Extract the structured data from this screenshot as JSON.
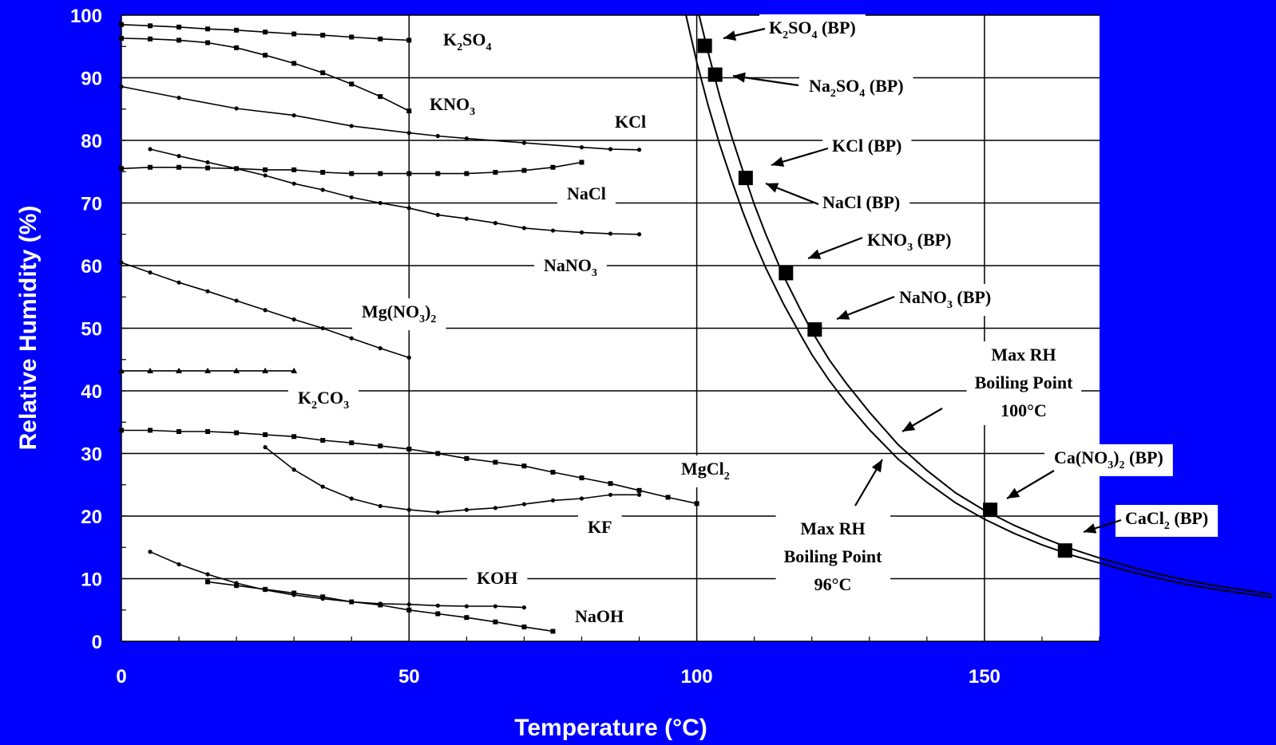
{
  "chart_data": {
    "type": "line",
    "title": "",
    "xlabel": "Temperature (°C)",
    "ylabel": "Relative Humidity (%)",
    "xlim": [
      0,
      170
    ],
    "ylim": [
      0,
      100
    ],
    "x_ticks": [
      0,
      50,
      100,
      150
    ],
    "y_ticks": [
      0,
      10,
      20,
      30,
      40,
      50,
      60,
      70,
      80,
      90,
      100
    ],
    "grid": true,
    "colors": {
      "background": "#0000ff",
      "plot": "#ffffff",
      "ink": "#000000",
      "text": "#ffffff"
    },
    "series": [
      {
        "name": "K2SO4",
        "label_parts": [
          [
            "K"
          ],
          [
            "2",
            "sub"
          ],
          [
            "SO"
          ],
          [
            "4",
            "sub"
          ]
        ],
        "marker": "square",
        "x": [
          0,
          5,
          10,
          15,
          20,
          25,
          30,
          35,
          40,
          45,
          50
        ],
        "y": [
          98.5,
          98.3,
          98.1,
          97.8,
          97.6,
          97.3,
          97.0,
          96.8,
          96.5,
          96.2,
          96.0
        ]
      },
      {
        "name": "KNO3",
        "label_parts": [
          [
            "KNO"
          ],
          [
            "3",
            "sub"
          ]
        ],
        "marker": "square",
        "x": [
          0,
          5,
          10,
          15,
          20,
          25,
          30,
          35,
          40,
          45,
          50
        ],
        "y": [
          96.3,
          96.2,
          96.0,
          95.6,
          94.8,
          93.6,
          92.3,
          90.8,
          89.0,
          87.0,
          84.7
        ]
      },
      {
        "name": "KCl",
        "label_parts": [
          [
            "KCl"
          ]
        ],
        "marker": "dot",
        "x": [
          0,
          10,
          20,
          30,
          40,
          50,
          55,
          60,
          70,
          80,
          85,
          90
        ],
        "y": [
          88.6,
          86.8,
          85.1,
          84.0,
          82.3,
          81.2,
          80.7,
          80.3,
          79.6,
          78.9,
          78.6,
          78.5
        ]
      },
      {
        "name": "NaCl",
        "label_parts": [
          [
            "NaCl"
          ]
        ],
        "marker": "square",
        "x": [
          0,
          5,
          10,
          15,
          20,
          25,
          30,
          35,
          40,
          45,
          50,
          55,
          60,
          65,
          70,
          75,
          80
        ],
        "y": [
          75.5,
          75.7,
          75.7,
          75.6,
          75.5,
          75.3,
          75.3,
          74.9,
          74.7,
          74.7,
          74.7,
          74.7,
          74.7,
          74.9,
          75.2,
          75.7,
          76.5
        ]
      },
      {
        "name": "NaNO3",
        "label_parts": [
          [
            "NaNO"
          ],
          [
            "3",
            "sub"
          ]
        ],
        "marker": "dot",
        "x": [
          5,
          10,
          15,
          20,
          25,
          30,
          35,
          40,
          45,
          50,
          55,
          60,
          65,
          70,
          75,
          80,
          85,
          90
        ],
        "y": [
          78.6,
          77.5,
          76.5,
          75.5,
          74.4,
          73.1,
          72.1,
          70.9,
          70.0,
          69.2,
          68.1,
          67.5,
          66.8,
          66.0,
          65.6,
          65.3,
          65.1,
          65.0
        ]
      },
      {
        "name": "Mg(NO3)2",
        "label_parts": [
          [
            "Mg(NO"
          ],
          [
            "3",
            "sub"
          ],
          [
            ")"
          ],
          [
            "2",
            "sub"
          ]
        ],
        "marker": "dot",
        "x": [
          0,
          5,
          10,
          15,
          20,
          25,
          30,
          35,
          40,
          45,
          50
        ],
        "y": [
          60.5,
          58.9,
          57.3,
          55.9,
          54.4,
          52.9,
          51.4,
          50.0,
          48.4,
          46.8,
          45.3
        ]
      },
      {
        "name": "K2CO3",
        "label_parts": [
          [
            "K"
          ],
          [
            "2",
            "sub"
          ],
          [
            "CO"
          ],
          [
            "3",
            "sub"
          ]
        ],
        "marker": "triangle",
        "x": [
          0,
          5,
          10,
          15,
          20,
          25,
          30
        ],
        "y": [
          43.2,
          43.2,
          43.2,
          43.2,
          43.2,
          43.2,
          43.2
        ]
      },
      {
        "name": "MgCl2",
        "label_parts": [
          [
            "MgCl"
          ],
          [
            "2",
            "sub"
          ]
        ],
        "marker": "square",
        "x": [
          0,
          5,
          10,
          15,
          20,
          25,
          30,
          35,
          40,
          45,
          50,
          55,
          60,
          65,
          70,
          75,
          80,
          85,
          90,
          95,
          100
        ],
        "y": [
          33.7,
          33.7,
          33.5,
          33.5,
          33.3,
          33.0,
          32.7,
          32.1,
          31.7,
          31.2,
          30.7,
          30.0,
          29.2,
          28.6,
          28.0,
          27.0,
          26.1,
          25.2,
          24.1,
          23.0,
          22.0
        ]
      },
      {
        "name": "KF",
        "label_parts": [
          [
            "KF"
          ]
        ],
        "marker": "dot",
        "x": [
          25,
          30,
          35,
          40,
          45,
          50,
          55,
          60,
          65,
          70,
          75,
          80,
          85,
          90
        ],
        "y": [
          31.0,
          27.4,
          24.7,
          22.8,
          21.6,
          21.0,
          20.6,
          21.0,
          21.3,
          21.9,
          22.5,
          22.8,
          23.4,
          23.4
        ]
      },
      {
        "name": "KOH",
        "label_parts": [
          [
            "KOH"
          ]
        ],
        "marker": "dot",
        "x": [
          5,
          10,
          15,
          20,
          25,
          30,
          35,
          40,
          45,
          50,
          55,
          60,
          65,
          70
        ],
        "y": [
          14.3,
          12.3,
          10.7,
          9.3,
          8.2,
          7.4,
          6.8,
          6.3,
          6.0,
          5.9,
          5.7,
          5.6,
          5.6,
          5.4
        ]
      },
      {
        "name": "NaOH",
        "label_parts": [
          [
            "NaOH"
          ]
        ],
        "marker": "square",
        "x": [
          15,
          20,
          25,
          30,
          35,
          40,
          45,
          50,
          55,
          60,
          65,
          70,
          75
        ],
        "y": [
          9.5,
          8.9,
          8.3,
          7.7,
          7.1,
          6.3,
          5.8,
          5.0,
          4.4,
          3.8,
          3.1,
          2.3,
          1.6
        ]
      }
    ],
    "boiling_points": [
      {
        "name": "K2SO4 (BP)",
        "label_parts": [
          [
            "K"
          ],
          [
            "2",
            "sub"
          ],
          [
            "SO"
          ],
          [
            "4",
            "sub"
          ],
          [
            " (BP)"
          ]
        ],
        "x": 101.4,
        "y": 95.1
      },
      {
        "name": "Na2SO4 (BP)",
        "label_parts": [
          [
            "Na"
          ],
          [
            "2",
            "sub"
          ],
          [
            "SO"
          ],
          [
            "4",
            "sub"
          ],
          [
            " (BP)"
          ]
        ],
        "x": 103.2,
        "y": 90.5
      },
      {
        "name": "KCl (BP)",
        "label_parts": [
          [
            "KCl (BP)"
          ]
        ],
        "x": 108.5,
        "y": 74.0
      },
      {
        "name": "NaCl (BP)",
        "label_parts": [
          [
            "NaCl (BP)"
          ]
        ],
        "x": 108.5,
        "y": 74.0
      },
      {
        "name": "KNO3 (BP)",
        "label_parts": [
          [
            "KNO"
          ],
          [
            "3",
            "sub"
          ],
          [
            " (BP)"
          ]
        ],
        "x": 115.5,
        "y": 58.8
      },
      {
        "name": "NaNO3 (BP)",
        "label_parts": [
          [
            "NaNO"
          ],
          [
            "3",
            "sub"
          ],
          [
            " (BP)"
          ]
        ],
        "x": 120.5,
        "y": 49.8
      },
      {
        "name": "Ca(NO3)2 (BP)",
        "label_parts": [
          [
            "Ca(NO"
          ],
          [
            "3",
            "sub"
          ],
          [
            ")"
          ],
          [
            "2",
            "sub"
          ],
          [
            " (BP)"
          ]
        ],
        "x": 151.0,
        "y": 21.0
      },
      {
        "name": "CaCl2 (BP)",
        "label_parts": [
          [
            "CaCl"
          ],
          [
            "2",
            "sub"
          ],
          [
            " (BP)"
          ]
        ],
        "x": 164.0,
        "y": 14.5
      }
    ],
    "bp_points_drawn": [
      [
        101.4,
        95.1
      ],
      [
        103.2,
        90.5
      ],
      [
        108.5,
        74.0
      ],
      [
        115.5,
        58.8
      ],
      [
        120.5,
        49.8
      ],
      [
        151.0,
        21.0
      ],
      [
        164.0,
        14.5
      ]
    ],
    "max_rh_curves": [
      {
        "name": "Max RH Boiling Point 100°C",
        "label_lines": [
          "Max RH",
          "Boiling Point",
          "100°C"
        ],
        "x": [
          98.5,
          100,
          102,
          104,
          106,
          108,
          110,
          112,
          115,
          118,
          120,
          123,
          126,
          130,
          135,
          140,
          145,
          150,
          155,
          160,
          165,
          170,
          175,
          180,
          185,
          190,
          200
        ],
        "y": [
          108.5,
          101.5,
          94.0,
          87.0,
          80.8,
          75.2,
          69.8,
          65.0,
          58.5,
          53.0,
          49.5,
          45.0,
          41.2,
          36.6,
          31.4,
          27.3,
          23.7,
          20.9,
          18.6,
          16.6,
          14.8,
          13.3,
          12.0,
          10.8,
          9.8,
          8.9,
          7.5
        ]
      },
      {
        "name": "Max RH Boiling Point 96°C",
        "label_lines": [
          "Max RH",
          "Boiling Point",
          "96°C"
        ],
        "x": [
          96.5,
          98,
          100,
          102,
          104,
          106,
          108,
          110,
          112,
          115,
          118,
          120,
          123,
          126,
          130,
          135,
          140,
          145,
          150,
          155,
          160,
          165,
          170,
          175,
          180,
          185,
          190,
          200
        ],
        "y": [
          108.5,
          100.5,
          92.5,
          85.5,
          79.3,
          73.8,
          68.6,
          63.9,
          59.6,
          54.0,
          49.0,
          45.8,
          41.7,
          38.1,
          33.8,
          29.1,
          25.4,
          22.1,
          19.5,
          17.3,
          15.4,
          13.8,
          12.5,
          11.2,
          10.1,
          9.1,
          8.3,
          7.0
        ]
      }
    ]
  }
}
